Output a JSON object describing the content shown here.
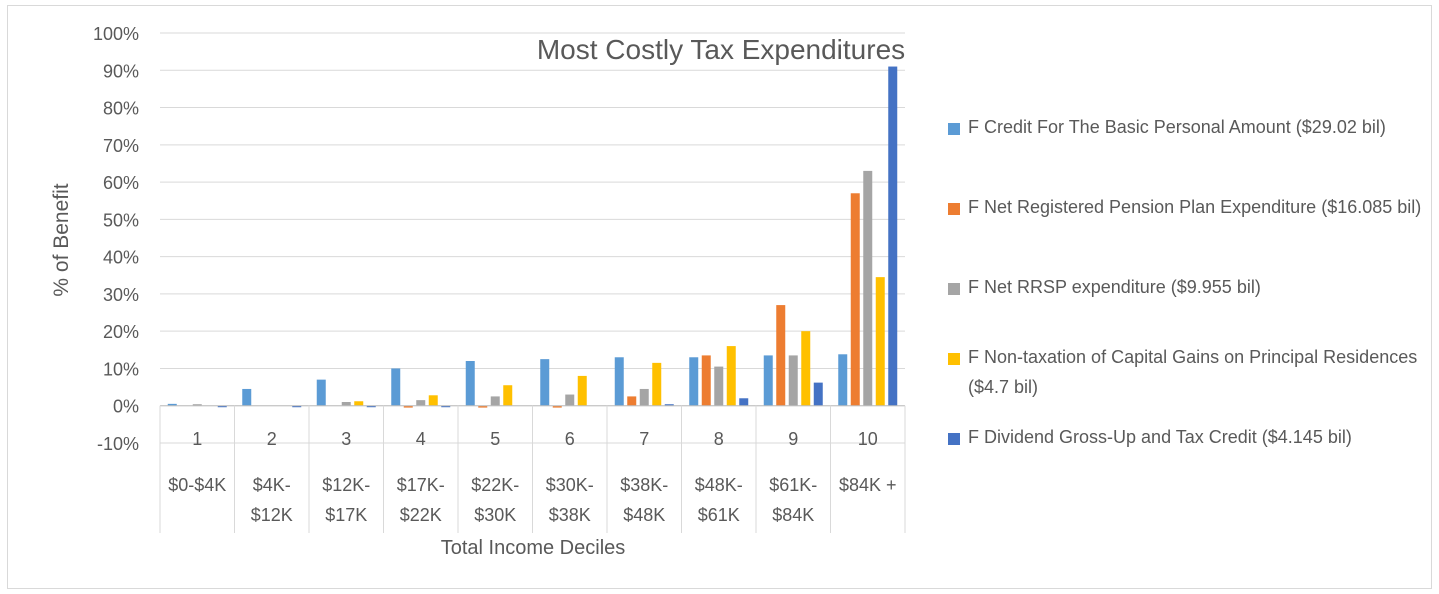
{
  "chart_data": {
    "type": "bar",
    "title": "Most Costly Tax Expenditures",
    "xlabel": "Total Income Deciles",
    "ylabel": "% of Benefit",
    "ylim": [
      -10,
      100
    ],
    "y_ticks": [
      "-10%",
      "0%",
      "10%",
      "20%",
      "30%",
      "40%",
      "50%",
      "60%",
      "70%",
      "80%",
      "90%",
      "100%"
    ],
    "y_tick_values": [
      -10,
      0,
      10,
      20,
      30,
      40,
      50,
      60,
      70,
      80,
      90,
      100
    ],
    "categories": [
      "1",
      "2",
      "3",
      "4",
      "5",
      "6",
      "7",
      "8",
      "9",
      "10"
    ],
    "category_ranges": [
      [
        "$0-$4K"
      ],
      [
        "$4K-",
        "$12K"
      ],
      [
        "$12K-",
        "$17K"
      ],
      [
        "$17K-",
        "$22K"
      ],
      [
        "$22K-",
        "$30K"
      ],
      [
        "$30K-",
        "$38K"
      ],
      [
        "$38K-",
        "$48K"
      ],
      [
        "$48K-",
        "$61K"
      ],
      [
        "$61K-",
        "$84K"
      ],
      [
        "$84K +"
      ]
    ],
    "series": [
      {
        "name": "F Credit For The Basic Personal Amount ($29.02 bil)",
        "color": "#5b9bd5",
        "values": [
          0.5,
          4.5,
          7,
          10,
          12,
          12.5,
          13,
          13,
          13.5,
          13.8
        ]
      },
      {
        "name": "F Net Registered Pension Plan Expenditure ($16.085 bil)",
        "color": "#ed7d31",
        "values": [
          0,
          0,
          0,
          -0.5,
          -0.5,
          -0.5,
          2.5,
          13.5,
          27,
          57
        ]
      },
      {
        "name": "F Net RRSP expenditure ($9.955 bil)",
        "color": "#a5a5a5",
        "values": [
          0.3,
          0,
          1,
          1.5,
          2.5,
          3,
          4.5,
          10.5,
          13.5,
          63
        ]
      },
      {
        "name": "F Non-taxation of Capital Gains on Principal Residences ($4.7 bil)",
        "color": "#ffc000",
        "values": [
          0,
          0,
          1.2,
          2.8,
          5.5,
          8,
          11.5,
          16,
          20,
          34.5
        ]
      },
      {
        "name": "F Dividend Gross-Up and Tax Credit  ($4.145 bil)",
        "color": "#4472c4",
        "values": [
          -0.3,
          -0.3,
          -0.3,
          -0.3,
          0,
          0,
          0.3,
          2,
          6.2,
          91
        ]
      }
    ],
    "legend_position": "right",
    "grid": true
  }
}
